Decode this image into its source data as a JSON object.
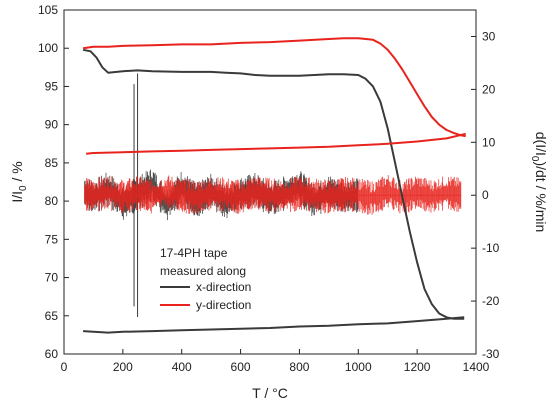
{
  "chart_data": {
    "type": "line",
    "title": "",
    "xlabel": "T / °C",
    "ylabel_left": {
      "main": "I/I",
      "sub": "0",
      "tail": " / %"
    },
    "ylabel_right": {
      "pre": "d(I/I",
      "sub": "0",
      "post": ")/dt / %/min"
    },
    "xlim": [
      0,
      1400
    ],
    "ylim_left": [
      60,
      105
    ],
    "ylim_right": [
      -30,
      35
    ],
    "x_ticks": [
      "0",
      "200",
      "400",
      "600",
      "800",
      "1000",
      "1200",
      "1400"
    ],
    "y_ticks_left": [
      "60",
      "65",
      "70",
      "75",
      "80",
      "85",
      "90",
      "95",
      "100",
      "105"
    ],
    "y_ticks_right": [
      "-30",
      "-20",
      "-10",
      "0",
      "10",
      "20",
      "30"
    ],
    "legend": {
      "title_lines": [
        "17-4PH tape",
        "measured along"
      ],
      "entries": [
        {
          "name": "x-direction",
          "color": "#3a3a3a"
        },
        {
          "name": "y-direction",
          "color": "#e8231d"
        }
      ]
    },
    "series": [
      {
        "name": "x-direction",
        "color": "#3a3a3a",
        "axis": "left",
        "heating": {
          "x": [
            65,
            90,
            110,
            130,
            150,
            200,
            250,
            300,
            400,
            500,
            550,
            600,
            650,
            700,
            800,
            900,
            950,
            1000,
            1025,
            1050,
            1075,
            1100,
            1125,
            1150,
            1175,
            1200,
            1225,
            1250,
            1275,
            1300,
            1325,
            1360
          ],
          "y": [
            99.8,
            99.6,
            98.8,
            97.5,
            96.8,
            97.0,
            97.1,
            97.0,
            96.9,
            96.9,
            96.8,
            96.7,
            96.5,
            96.4,
            96.4,
            96.6,
            96.6,
            96.5,
            96.0,
            95.0,
            93.0,
            89.5,
            85.0,
            80.5,
            76.0,
            72.0,
            68.5,
            66.5,
            65.3,
            64.8,
            64.6,
            64.6
          ]
        },
        "cooling": {
          "x": [
            1360,
            1300,
            1200,
            1100,
            1000,
            900,
            800,
            700,
            600,
            500,
            400,
            300,
            200,
            150,
            100,
            65
          ],
          "y": [
            64.8,
            64.6,
            64.3,
            64.0,
            63.9,
            63.7,
            63.6,
            63.4,
            63.3,
            63.2,
            63.1,
            63.0,
            62.9,
            62.8,
            62.9,
            63.0
          ]
        },
        "rate": {
          "x": [
            70,
            100,
            150,
            200,
            250,
            300,
            350,
            400,
            450,
            500,
            550,
            600,
            650,
            700,
            750,
            800,
            850,
            900,
            950,
            1000
          ],
          "y": [
            0.5,
            -0.4,
            1.2,
            -1.5,
            0.3,
            2.0,
            -2.0,
            1.5,
            -1.0,
            0.8,
            -1.4,
            0.2,
            1.0,
            -0.8,
            0.4,
            1.6,
            -1.2,
            0.6,
            -0.5,
            0.0
          ]
        },
        "spikes": [
          {
            "x": 238,
            "ymin": -21,
            "ymax": 21
          },
          {
            "x": 250,
            "ymin": -23,
            "ymax": 23
          }
        ]
      },
      {
        "name": "y-direction",
        "color": "#e8231d",
        "axis": "left",
        "heating": {
          "x": [
            65,
            100,
            150,
            200,
            300,
            400,
            500,
            600,
            700,
            800,
            900,
            950,
            1000,
            1050,
            1075,
            1100,
            1125,
            1150,
            1175,
            1200,
            1225,
            1250,
            1275,
            1300,
            1325,
            1350,
            1365
          ],
          "y": [
            100.0,
            100.2,
            100.2,
            100.3,
            100.4,
            100.5,
            100.5,
            100.7,
            100.8,
            101.0,
            101.2,
            101.3,
            101.3,
            101.1,
            100.6,
            99.8,
            98.6,
            97.2,
            95.6,
            94.0,
            92.4,
            91.0,
            90.0,
            89.3,
            88.9,
            88.6,
            88.5
          ]
        },
        "cooling": {
          "x": [
            1365,
            1300,
            1200,
            1100,
            1000,
            900,
            800,
            700,
            600,
            500,
            400,
            300,
            200,
            100,
            75
          ],
          "y": [
            88.8,
            88.2,
            87.8,
            87.5,
            87.3,
            87.1,
            87.0,
            86.9,
            86.8,
            86.7,
            86.6,
            86.5,
            86.4,
            86.3,
            86.2
          ]
        },
        "rate": {
          "x": [
            70,
            100,
            150,
            200,
            250,
            300,
            350,
            400,
            450,
            500,
            550,
            600,
            650,
            700,
            750,
            800,
            850,
            900,
            950,
            1000,
            1050,
            1100,
            1150,
            1200,
            1250,
            1300,
            1350
          ],
          "y": [
            0.2,
            0.0,
            0.5,
            -0.3,
            0.4,
            -0.2,
            0.6,
            0.0,
            -0.5,
            0.3,
            0.1,
            -0.4,
            0.5,
            0.0,
            -0.2,
            0.4,
            0.0,
            -0.3,
            0.2,
            0.0,
            -0.6,
            0.8,
            -0.5,
            0.6,
            -0.3,
            0.5,
            0.0
          ]
        }
      }
    ]
  }
}
